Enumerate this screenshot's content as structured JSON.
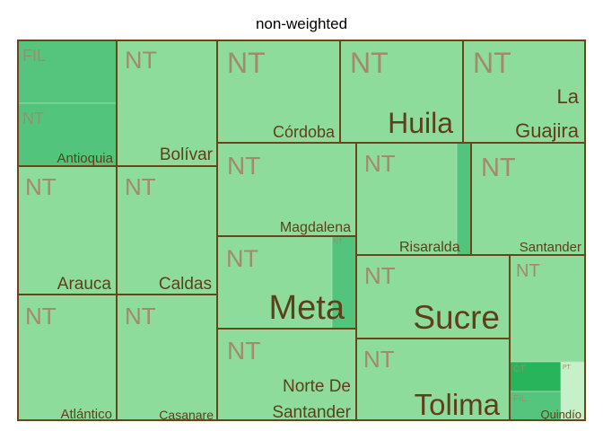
{
  "chart_data": {
    "type": "treemap",
    "title": "non-weighted",
    "colors": {
      "NT": "#8ddc9b",
      "FIL": "#55c57d",
      "CT": "#27b45a",
      "PT": "#c6f0c7",
      "small": "#52c47b",
      "border": "#6b4419",
      "group_label": "#5e3f1a",
      "sub_label": "#a38a6a"
    },
    "groups": [
      {
        "name": "Antioquia",
        "label_lines": [
          "Antioquia"
        ],
        "tiles": [
          {
            "name": "FIL",
            "value": 1
          },
          {
            "name": "NT",
            "value": 1
          }
        ]
      },
      {
        "name": "Bolívar",
        "label_lines": [
          "Bolívar"
        ],
        "tiles": [
          {
            "name": "NT",
            "value": 1
          }
        ]
      },
      {
        "name": "Córdoba",
        "label_lines": [
          "Córdoba"
        ],
        "tiles": [
          {
            "name": "NT",
            "value": 1
          }
        ]
      },
      {
        "name": "Huila",
        "label_lines": [
          "Huila"
        ],
        "tiles": [
          {
            "name": "NT",
            "value": 1
          }
        ]
      },
      {
        "name": "La Guajira",
        "label_lines": [
          "La",
          "Guajira"
        ],
        "tiles": [
          {
            "name": "NT",
            "value": 1
          }
        ]
      },
      {
        "name": "Magdalena",
        "label_lines": [
          "Magdalena"
        ],
        "tiles": [
          {
            "name": "NT",
            "value": 1
          }
        ]
      },
      {
        "name": "Risaralda",
        "label_lines": [
          "Risaralda"
        ],
        "tiles": [
          {
            "name": "NT",
            "value": 1
          },
          {
            "name": "",
            "value": 0.1
          }
        ]
      },
      {
        "name": "Santander",
        "label_lines": [
          "Santander"
        ],
        "tiles": [
          {
            "name": "NT",
            "value": 1
          }
        ]
      },
      {
        "name": "Arauca",
        "label_lines": [
          "Arauca"
        ],
        "tiles": [
          {
            "name": "NT",
            "value": 1
          }
        ]
      },
      {
        "name": "Caldas",
        "label_lines": [
          "Caldas"
        ],
        "tiles": [
          {
            "name": "NT",
            "value": 1
          }
        ]
      },
      {
        "name": "Meta",
        "label_lines": [
          "Meta"
        ],
        "tiles": [
          {
            "name": "NT",
            "value": 1
          },
          {
            "name": "NT",
            "value": 0.2
          }
        ]
      },
      {
        "name": "Sucre",
        "label_lines": [
          "Sucre"
        ],
        "tiles": [
          {
            "name": "NT",
            "value": 1
          }
        ]
      },
      {
        "name": "Atlántico",
        "label_lines": [
          "Atlántico"
        ],
        "tiles": [
          {
            "name": "NT",
            "value": 1
          }
        ]
      },
      {
        "name": "Casanare",
        "label_lines": [
          "Casanare"
        ],
        "tiles": [
          {
            "name": "NT",
            "value": 1
          }
        ]
      },
      {
        "name": "Norte De Santander",
        "label_lines": [
          "Norte De",
          "Santander"
        ],
        "tiles": [
          {
            "name": "NT",
            "value": 1
          }
        ]
      },
      {
        "name": "Tolima",
        "label_lines": [
          "Tolima"
        ],
        "tiles": [
          {
            "name": "NT",
            "value": 1
          }
        ]
      },
      {
        "name": "Quindío",
        "label_lines": [
          "Quindío"
        ],
        "tiles": [
          {
            "name": "NT",
            "value": 1
          },
          {
            "name": "CT",
            "value": 0.2
          },
          {
            "name": "PT",
            "value": 0.1
          },
          {
            "name": "FIL",
            "value": 0.2
          }
        ]
      }
    ]
  }
}
